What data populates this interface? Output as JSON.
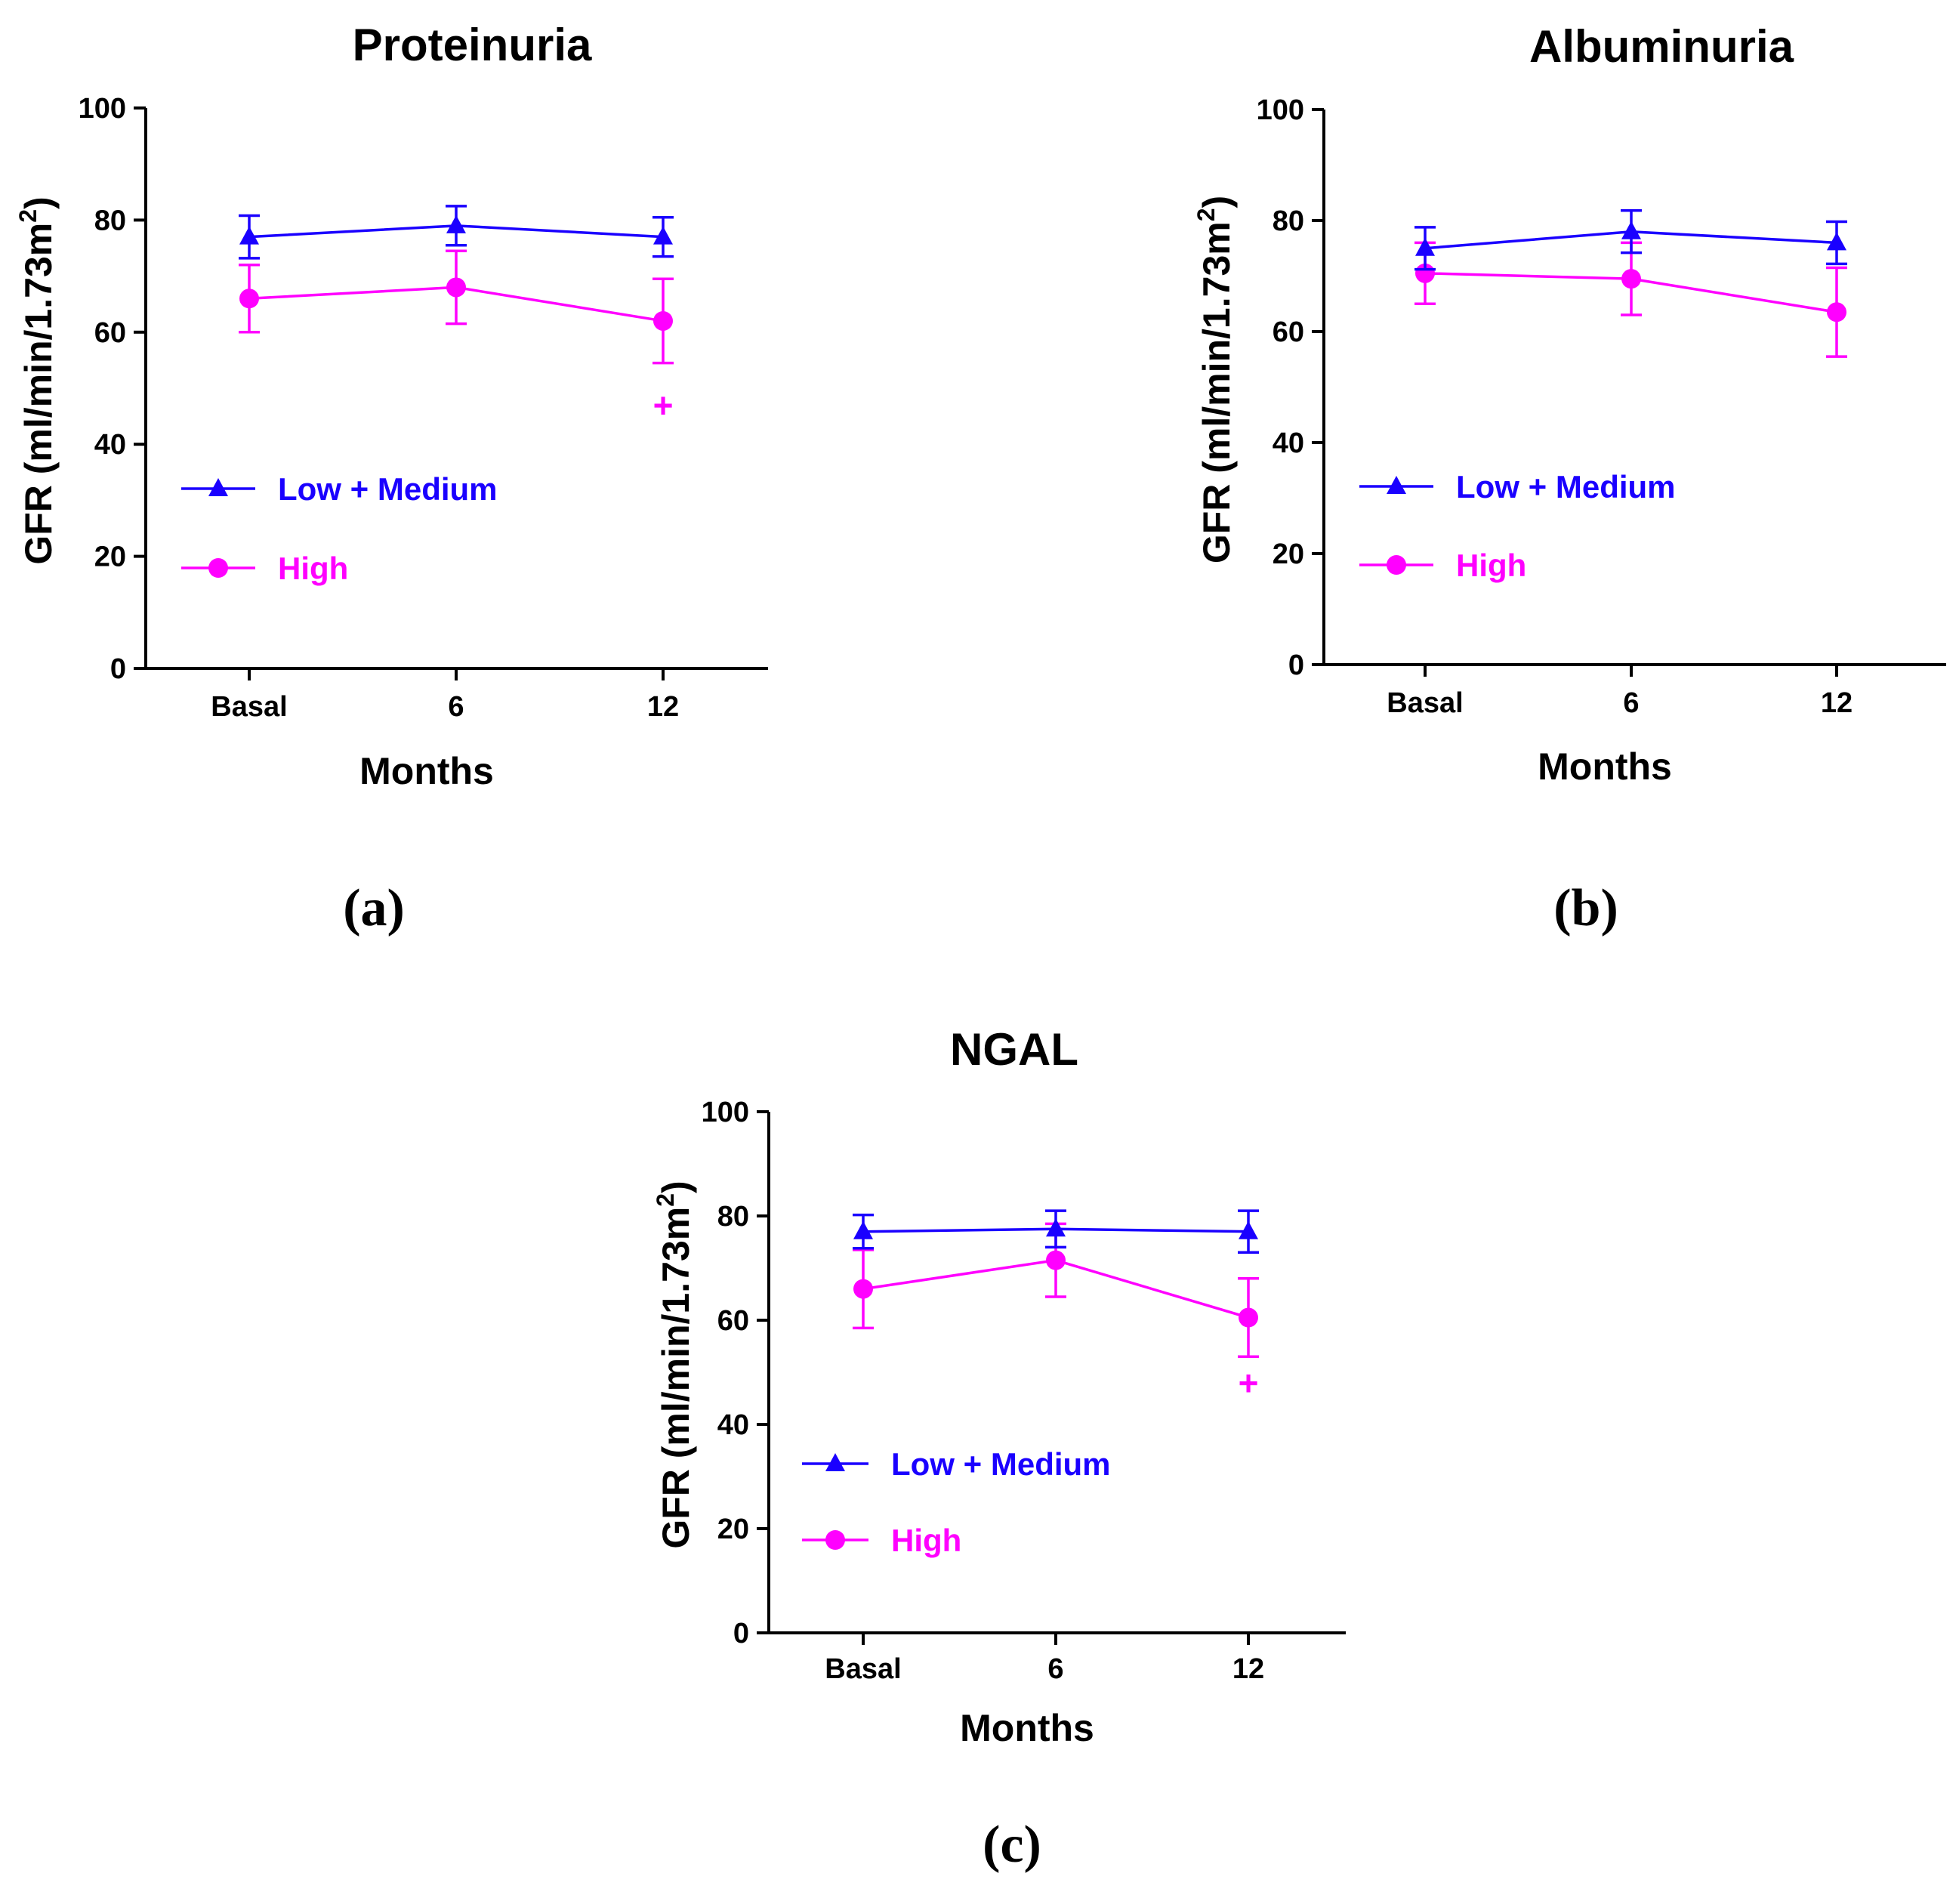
{
  "colors": {
    "low_medium": "#1a00ff",
    "high": "#ff00ff",
    "axis": "#000000"
  },
  "chart_data": [
    {
      "type": "line",
      "panel_label": "(a)",
      "title": "Proteinuria",
      "xlabel": "Months",
      "ylabel": "GFR (ml/min/1.73m",
      "ylabel_sup": "2",
      "ylabel_close": ")",
      "categories": [
        "Basal",
        "6",
        "12"
      ],
      "ylim": [
        0,
        100
      ],
      "yticks": [
        "0",
        "20",
        "40",
        "60",
        "80",
        "100"
      ],
      "series": [
        {
          "name": "Low + Medium",
          "marker": "triangle",
          "values": [
            77,
            79,
            77
          ],
          "err_up": [
            3.8,
            3.5,
            3.5
          ],
          "err_down": [
            3.8,
            3.5,
            3.5
          ]
        },
        {
          "name": "High",
          "marker": "circle",
          "values": [
            66,
            68,
            62
          ],
          "err_up": [
            6,
            6.5,
            7.5
          ],
          "err_down": [
            6,
            6.5,
            7.5
          ]
        }
      ],
      "annotations": [
        {
          "text": "+",
          "category": "12",
          "y": 47,
          "series": "High"
        }
      ]
    },
    {
      "type": "line",
      "panel_label": "(b)",
      "title": "Albuminuria",
      "xlabel": "Months",
      "ylabel": "GFR (ml/min/1.73m",
      "ylabel_sup": "2",
      "ylabel_close": ")",
      "categories": [
        "Basal",
        "6",
        "12"
      ],
      "ylim": [
        0,
        100
      ],
      "yticks": [
        "0",
        "20",
        "40",
        "60",
        "80",
        "100"
      ],
      "series": [
        {
          "name": "Low + Medium",
          "marker": "triangle",
          "values": [
            75,
            78,
            76
          ],
          "err_up": [
            3.8,
            3.8,
            3.8
          ],
          "err_down": [
            3.8,
            3.8,
            3.8
          ]
        },
        {
          "name": "High",
          "marker": "circle",
          "values": [
            70.5,
            69.5,
            63.5
          ],
          "err_up": [
            5.5,
            6.5,
            8
          ],
          "err_down": [
            5.5,
            6.5,
            8
          ]
        }
      ],
      "annotations": []
    },
    {
      "type": "line",
      "panel_label": "(c)",
      "title": "NGAL",
      "xlabel": "Months",
      "ylabel": "GFR (ml/min/1.73m",
      "ylabel_sup": "2",
      "ylabel_close": ")",
      "categories": [
        "Basal",
        "6",
        "12"
      ],
      "ylim": [
        0,
        100
      ],
      "yticks": [
        "0",
        "20",
        "40",
        "60",
        "80",
        "100"
      ],
      "series": [
        {
          "name": "Low + Medium",
          "marker": "triangle",
          "values": [
            77,
            77.5,
            77
          ],
          "err_up": [
            3.2,
            3.5,
            4
          ],
          "err_down": [
            3.2,
            3.5,
            4
          ]
        },
        {
          "name": "High",
          "marker": "circle",
          "values": [
            66,
            71.5,
            60.5
          ],
          "err_up": [
            7.5,
            7,
            7.5
          ],
          "err_down": [
            7.5,
            7,
            7.5
          ]
        }
      ],
      "annotations": [
        {
          "text": "+",
          "category": "12",
          "y": 48,
          "series": "High"
        }
      ]
    }
  ]
}
